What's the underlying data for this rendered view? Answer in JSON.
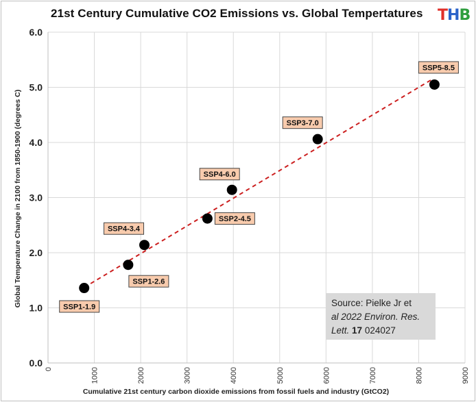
{
  "title": "21st Century Cumulative CO2 Emissions vs. Global  Tempertatures",
  "logo": {
    "letters": [
      "T",
      "H",
      "B"
    ],
    "colors": [
      "#e0302b",
      "#2a62c9",
      "#2e9e3e"
    ]
  },
  "source": {
    "line1": "Source: Pielke Jr et",
    "line2": "al 2022 Environ. Res.",
    "line3a": "Lett. ",
    "line3b": "17",
    "line3c": " 024027"
  },
  "colors": {
    "trend": "#cc1f1f",
    "marker": "#000000",
    "label_fill": "#f8cbad",
    "grid": "#d9d9d9"
  },
  "chart_data": {
    "type": "scatter",
    "title": "21st Century Cumulative CO2 Emissions vs. Global  Tempertatures",
    "xlabel": "Cumulative 21st century carbon dioxide emissions from fossil fuels and industry (GtCO2)",
    "ylabel": "Global Temperature Change in 2100 from 1850-1900  (degrees C)",
    "xlim": [
      0,
      9000
    ],
    "ylim": [
      0.0,
      6.0
    ],
    "xticks": [
      "0",
      "1000",
      "2000",
      "3000",
      "4000",
      "5000",
      "6000",
      "7000",
      "8000",
      "9000"
    ],
    "yticks": [
      "0.0",
      "1.0",
      "2.0",
      "3.0",
      "4.0",
      "5.0",
      "6.0"
    ],
    "grid": true,
    "trendline": {
      "style": "dashed",
      "from": [
        780,
        1.37
      ],
      "to": [
        8300,
        5.15
      ]
    },
    "points": [
      {
        "label": "SSP1-1.9",
        "x": 780,
        "y": 1.36
      },
      {
        "label": "SSP1-2.6",
        "x": 1730,
        "y": 1.78
      },
      {
        "label": "SSP4-3.4",
        "x": 2080,
        "y": 2.14
      },
      {
        "label": "SSP2-4.5",
        "x": 3440,
        "y": 2.62
      },
      {
        "label": "SSP4-6.0",
        "x": 3970,
        "y": 3.14
      },
      {
        "label": "SSP3-7.0",
        "x": 5820,
        "y": 4.06
      },
      {
        "label": "SSP5-8.5",
        "x": 8340,
        "y": 5.05
      }
    ]
  }
}
